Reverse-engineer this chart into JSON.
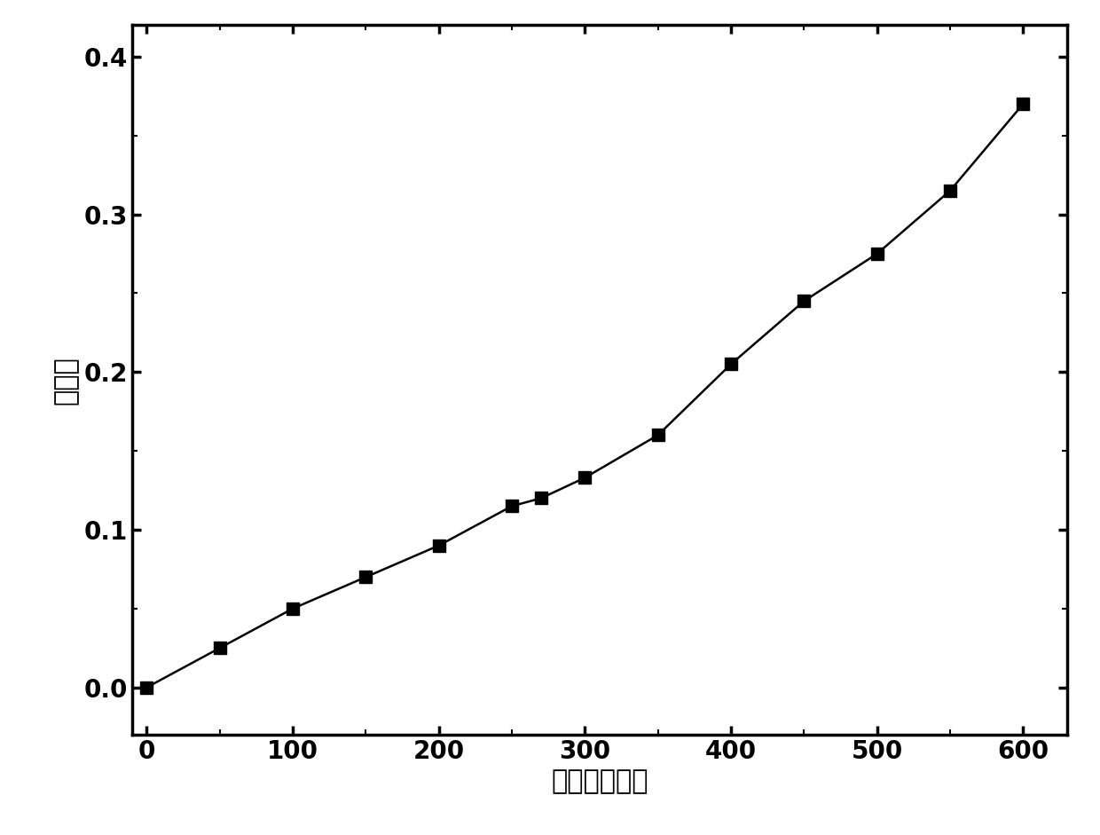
{
  "x_data": [
    0,
    50,
    100,
    150,
    200,
    250,
    270,
    300,
    350,
    400,
    450,
    500,
    550,
    600
  ],
  "y_data": [
    0.0,
    0.025,
    0.05,
    0.07,
    0.09,
    0.115,
    0.12,
    0.133,
    0.16,
    0.205,
    0.245,
    0.275,
    0.315,
    0.37
  ],
  "xlabel": "时间（分钟）",
  "ylabel": "降解率",
  "xlim": [
    -10,
    630
  ],
  "ylim": [
    -0.03,
    0.42
  ],
  "xticks": [
    0,
    100,
    200,
    300,
    400,
    500,
    600
  ],
  "yticks": [
    0.0,
    0.1,
    0.2,
    0.3,
    0.4
  ],
  "line_color": "#000000",
  "marker": "s",
  "marker_color": "#000000",
  "marker_size": 10,
  "line_width": 1.8,
  "background_color": "#ffffff",
  "xlabel_fontsize": 22,
  "ylabel_fontsize": 22,
  "tick_fontsize": 20,
  "axis_linewidth": 2.5
}
